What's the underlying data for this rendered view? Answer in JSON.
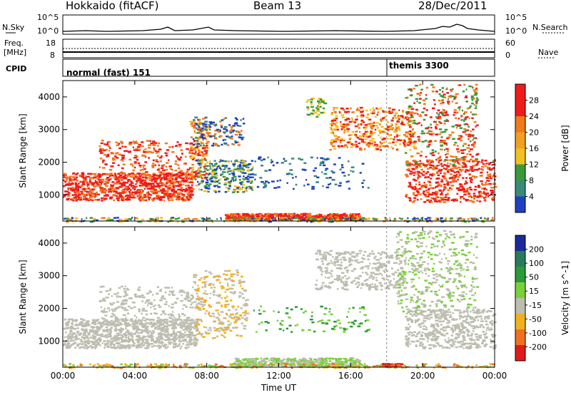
{
  "header": {
    "station": "Hokkaido (fitACF)",
    "beam": "Beam 13",
    "date": "28/Dec/2011"
  },
  "noise_panel": {
    "left_label": "N.Sky",
    "right_label": "N.Search",
    "left_ticks": [
      "10^5",
      "10^0"
    ],
    "right_ticks": [
      "10^5",
      "10^0"
    ]
  },
  "freq_panel": {
    "left_label_1": "Freq.",
    "left_label_2": "[MHz]",
    "right_label": "Nave",
    "left_ticks": [
      "18",
      "8"
    ],
    "right_ticks": [
      "60",
      "0"
    ]
  },
  "cpid_panel": {
    "label": "CPID",
    "programs": [
      {
        "name": "normal (fast) 151",
        "start": "00:00"
      },
      {
        "name": "themis 3300",
        "start": "18:00"
      }
    ]
  },
  "chart_data": [
    {
      "type": "heatmap",
      "quantity": "Power",
      "ylabel": "Slant Range [km]",
      "colorbar_label": "Power [dB]",
      "colorbar_ticks": [
        "28",
        "24",
        "20",
        "16",
        "12",
        "8",
        "4"
      ],
      "colors": {
        "high": "#ee1c1c",
        "orange": "#f07a1c",
        "yellow": "#f2c020",
        "green": "#3a9a3a",
        "teal": "#3a8a7a",
        "blue": "#2040c0"
      },
      "ylim": [
        200,
        4500
      ],
      "yticks": [
        "1000",
        "2000",
        "3000",
        "4000"
      ],
      "xticks": [
        "00:00",
        "04:00",
        "08:00",
        "12:00",
        "16:00",
        "20:00",
        "00:00"
      ]
    },
    {
      "type": "heatmap",
      "quantity": "Velocity",
      "ylabel": "Slant Range [km]",
      "colorbar_label": "Velocity [m s^-1]",
      "colorbar_ticks": [
        "200",
        "100",
        "50",
        "15",
        "-15",
        "-50",
        "-100",
        "-200"
      ],
      "colors": {
        "ground": "#bdbdb0",
        "pos_low": "#7ad03a",
        "pos_mid": "#2a9a3a",
        "pos_high": "#1a2a9a",
        "neg_low": "#f2b020",
        "neg_mid": "#f07020",
        "neg_high": "#e01a1a"
      },
      "ylim": [
        200,
        4500
      ],
      "yticks": [
        "1000",
        "2000",
        "3000",
        "4000"
      ],
      "xticks": [
        "00:00",
        "04:00",
        "08:00",
        "12:00",
        "16:00",
        "20:00",
        "00:00"
      ],
      "xlabel": "Time UT"
    }
  ]
}
